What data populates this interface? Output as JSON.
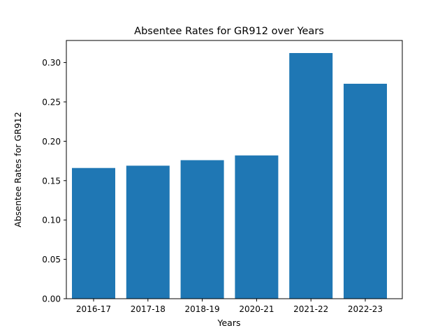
{
  "chart_data": {
    "type": "bar",
    "title": "Absentee Rates for GR912 over Years",
    "xlabel": "Years",
    "ylabel": "Absentee Rates for GR912",
    "categories": [
      "2016-17",
      "2017-18",
      "2018-19",
      "2020-21",
      "2021-22",
      "2022-23"
    ],
    "values": [
      0.166,
      0.169,
      0.176,
      0.182,
      0.312,
      0.273
    ],
    "ylim": [
      0,
      0.328
    ],
    "yticks": [
      0.0,
      0.05,
      0.1,
      0.15,
      0.2,
      0.25,
      0.3
    ],
    "ytick_labels": [
      "0.00",
      "0.05",
      "0.10",
      "0.15",
      "0.20",
      "0.25",
      "0.30"
    ],
    "grid": false,
    "bar_color": "#1f77b4"
  }
}
